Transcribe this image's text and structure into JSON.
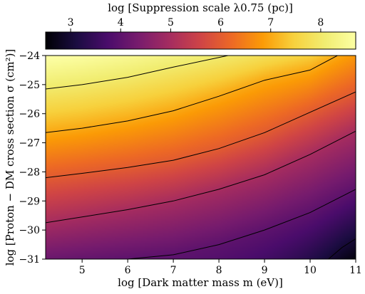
{
  "chart_data": {
    "type": "heatmap",
    "title": "",
    "colorbar": {
      "label": "log [Suppression scale λ0.75 (pc)]",
      "colormap": "inferno",
      "range": [
        2.5,
        8.7
      ],
      "ticks": [
        3,
        4,
        5,
        6,
        7,
        8
      ],
      "tick_labels": [
        "3",
        "4",
        "5",
        "6",
        "7",
        "8"
      ],
      "position": "top"
    },
    "xlabel": "log [Dark matter mass m (eV)]",
    "ylabel": "log [Proton − DM cross section σ (cm²)]",
    "xlim": [
      4.2,
      11
    ],
    "ylim": [
      -31,
      -24
    ],
    "xticks": [
      5,
      6,
      7,
      8,
      9,
      10,
      11
    ],
    "xtick_labels": [
      "5",
      "6",
      "7",
      "8",
      "9",
      "10",
      "11"
    ],
    "yticks": [
      -24,
      -25,
      -26,
      -27,
      -28,
      -29,
      -30,
      -31
    ],
    "ytick_labels": [
      "−24",
      "−25",
      "−26",
      "−27",
      "−28",
      "−29",
      "−30",
      "−31"
    ],
    "contours": [
      {
        "level": 3,
        "points": [
          [
            10.4,
            -31.0
          ],
          [
            10.7,
            -30.6
          ],
          [
            11.0,
            -30.3
          ]
        ]
      },
      {
        "level": 4,
        "points": [
          [
            6.0,
            -31.0
          ],
          [
            7.0,
            -30.85
          ],
          [
            8.0,
            -30.5
          ],
          [
            9.0,
            -30.0
          ],
          [
            10.0,
            -29.4
          ],
          [
            11.0,
            -28.6
          ]
        ]
      },
      {
        "level": 5,
        "points": [
          [
            4.2,
            -29.75
          ],
          [
            5.0,
            -29.55
          ],
          [
            6.0,
            -29.3
          ],
          [
            7.0,
            -29.0
          ],
          [
            8.0,
            -28.6
          ],
          [
            9.0,
            -28.1
          ],
          [
            10.0,
            -27.4
          ],
          [
            11.0,
            -26.6
          ]
        ]
      },
      {
        "level": 6,
        "points": [
          [
            4.2,
            -28.2
          ],
          [
            5.0,
            -28.05
          ],
          [
            6.0,
            -27.85
          ],
          [
            7.0,
            -27.6
          ],
          [
            8.0,
            -27.2
          ],
          [
            9.0,
            -26.65
          ],
          [
            10.0,
            -25.95
          ],
          [
            11.0,
            -25.25
          ]
        ]
      },
      {
        "level": 7,
        "points": [
          [
            4.2,
            -26.65
          ],
          [
            5.0,
            -26.5
          ],
          [
            6.0,
            -26.25
          ],
          [
            7.0,
            -25.9
          ],
          [
            8.0,
            -25.4
          ],
          [
            9.0,
            -24.85
          ],
          [
            10.0,
            -24.5
          ],
          [
            10.6,
            -24.0
          ]
        ]
      },
      {
        "level": 8,
        "points": [
          [
            4.2,
            -25.15
          ],
          [
            5.0,
            -25.0
          ],
          [
            6.0,
            -24.75
          ],
          [
            7.0,
            -24.4
          ],
          [
            8.2,
            -24.0
          ]
        ]
      }
    ]
  }
}
